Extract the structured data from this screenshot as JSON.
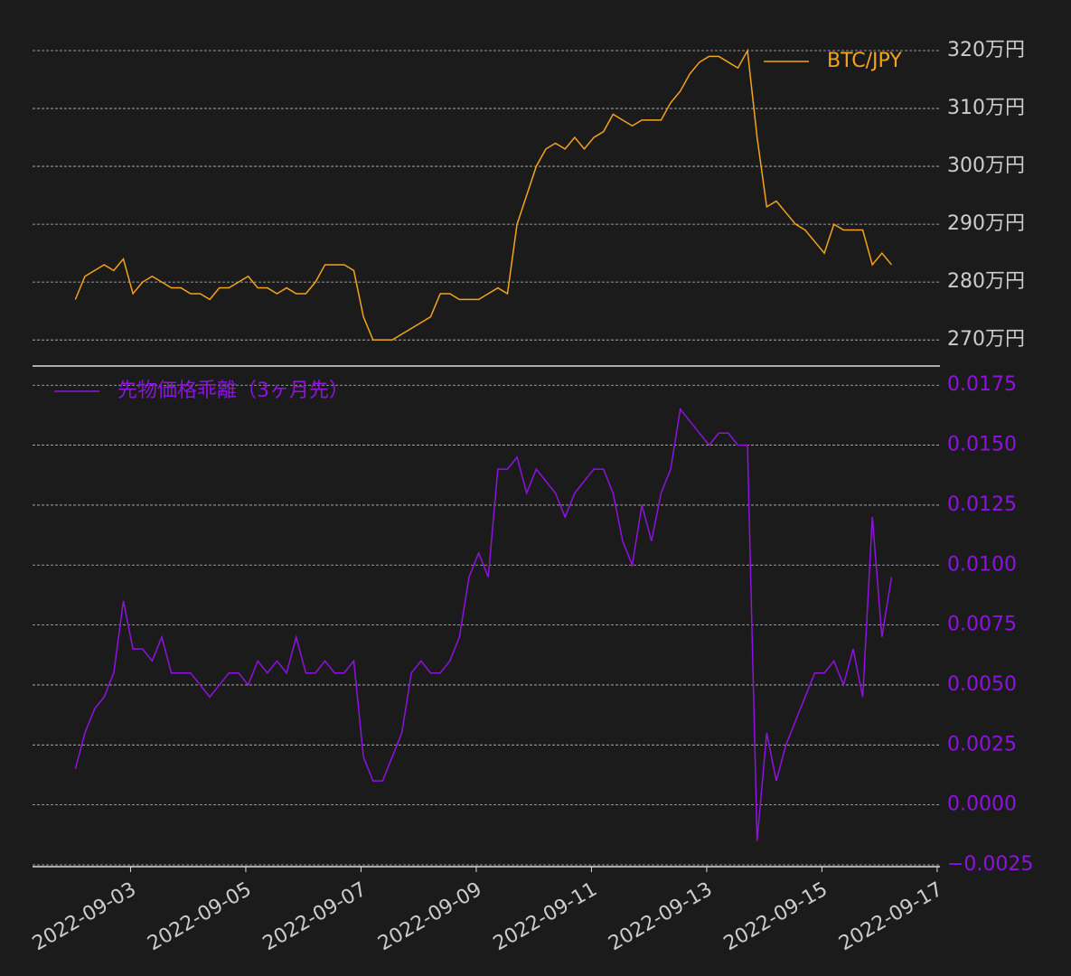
{
  "chart_data": [
    {
      "type": "line",
      "legend": "upper right",
      "xlim": [
        "2022-09-01T07:10",
        "2022-09-17T01:10"
      ],
      "ylim": [
        2655000,
        3225000
      ],
      "yticks": [
        {
          "value": 2700000,
          "label": "270万円"
        },
        {
          "value": 2800000,
          "label": "280万円"
        },
        {
          "value": 2900000,
          "label": "290万円"
        },
        {
          "value": 3000000,
          "label": "300万円"
        },
        {
          "value": 3100000,
          "label": "310万円"
        },
        {
          "value": 3200000,
          "label": "320万円"
        }
      ],
      "grid": true,
      "x": [
        "2022-09-02T01:00",
        "2022-09-02T05:00",
        "2022-09-02T09:00",
        "2022-09-02T13:00",
        "2022-09-02T17:00",
        "2022-09-02T21:00",
        "2022-09-03T01:00",
        "2022-09-03T05:00",
        "2022-09-03T09:00",
        "2022-09-03T13:00",
        "2022-09-03T17:00",
        "2022-09-03T21:00",
        "2022-09-04T01:00",
        "2022-09-04T05:00",
        "2022-09-04T09:00",
        "2022-09-04T13:00",
        "2022-09-04T17:00",
        "2022-09-04T21:00",
        "2022-09-05T01:00",
        "2022-09-05T05:00",
        "2022-09-05T09:00",
        "2022-09-05T13:00",
        "2022-09-05T17:00",
        "2022-09-05T21:00",
        "2022-09-06T01:00",
        "2022-09-06T05:00",
        "2022-09-06T09:00",
        "2022-09-06T13:00",
        "2022-09-06T17:00",
        "2022-09-06T21:00",
        "2022-09-07T01:00",
        "2022-09-07T05:00",
        "2022-09-07T09:00",
        "2022-09-07T13:00",
        "2022-09-07T17:00",
        "2022-09-07T21:00",
        "2022-09-08T01:00",
        "2022-09-08T05:00",
        "2022-09-08T09:00",
        "2022-09-08T13:00",
        "2022-09-08T17:00",
        "2022-09-08T21:00",
        "2022-09-09T01:00",
        "2022-09-09T05:00",
        "2022-09-09T09:00",
        "2022-09-09T13:00",
        "2022-09-09T17:00",
        "2022-09-09T21:00",
        "2022-09-10T01:00",
        "2022-09-10T05:00",
        "2022-09-10T09:00",
        "2022-09-10T13:00",
        "2022-09-10T17:00",
        "2022-09-10T21:00",
        "2022-09-11T01:00",
        "2022-09-11T05:00",
        "2022-09-11T09:00",
        "2022-09-11T13:00",
        "2022-09-11T17:00",
        "2022-09-11T21:00",
        "2022-09-12T01:00",
        "2022-09-12T05:00",
        "2022-09-12T09:00",
        "2022-09-12T13:00",
        "2022-09-12T17:00",
        "2022-09-12T21:00",
        "2022-09-13T01:00",
        "2022-09-13T05:00",
        "2022-09-13T09:00",
        "2022-09-13T13:00",
        "2022-09-13T17:00",
        "2022-09-13T21:00",
        "2022-09-14T01:00",
        "2022-09-14T05:00",
        "2022-09-14T09:00",
        "2022-09-14T13:00",
        "2022-09-14T17:00",
        "2022-09-14T21:00",
        "2022-09-15T01:00",
        "2022-09-15T05:00",
        "2022-09-15T09:00",
        "2022-09-15T13:00",
        "2022-09-15T17:00",
        "2022-09-15T21:00",
        "2022-09-16T01:00",
        "2022-09-16T05:00"
      ],
      "series": [
        {
          "name": "BTC/JPY",
          "color": "#f5a31a",
          "values": [
            2770000,
            2810000,
            2820000,
            2830000,
            2820000,
            2840000,
            2780000,
            2800000,
            2810000,
            2800000,
            2790000,
            2790000,
            2780000,
            2780000,
            2770000,
            2790000,
            2790000,
            2800000,
            2810000,
            2790000,
            2790000,
            2780000,
            2790000,
            2780000,
            2780000,
            2800000,
            2830000,
            2830000,
            2830000,
            2820000,
            2740000,
            2700000,
            2700000,
            2700000,
            2710000,
            2720000,
            2730000,
            2740000,
            2780000,
            2780000,
            2770000,
            2770000,
            2770000,
            2780000,
            2790000,
            2780000,
            2900000,
            2950000,
            3000000,
            3030000,
            3040000,
            3030000,
            3050000,
            3030000,
            3050000,
            3060000,
            3090000,
            3080000,
            3070000,
            3080000,
            3080000,
            3080000,
            3110000,
            3130000,
            3160000,
            3180000,
            3190000,
            3190000,
            3180000,
            3170000,
            3200000,
            3050000,
            2930000,
            2940000,
            2920000,
            2900000,
            2890000,
            2870000,
            2850000,
            2900000,
            2890000,
            2890000,
            2890000,
            2830000,
            2850000,
            2830000
          ]
        }
      ]
    },
    {
      "type": "line",
      "legend": "upper left",
      "xlim": [
        "2022-09-01T07:10",
        "2022-09-17T01:10"
      ],
      "ylim": [
        -0.0025,
        0.0183
      ],
      "yticks": [
        {
          "value": -0.0025,
          "label": "−0.0025"
        },
        {
          "value": 0,
          "label": "0.0000"
        },
        {
          "value": 0.0025,
          "label": "0.0025"
        },
        {
          "value": 0.005,
          "label": "0.0050"
        },
        {
          "value": 0.0075,
          "label": "0.0075"
        },
        {
          "value": 0.01,
          "label": "0.0100"
        },
        {
          "value": 0.0125,
          "label": "0.0125"
        },
        {
          "value": 0.015,
          "label": "0.0150"
        },
        {
          "value": 0.0175,
          "label": "0.0175"
        }
      ],
      "xticks": [
        "2022-09-03",
        "2022-09-05",
        "2022-09-07",
        "2022-09-09",
        "2022-09-11",
        "2022-09-13",
        "2022-09-15",
        "2022-09-17"
      ],
      "grid": true,
      "x": [
        "2022-09-02T01:00",
        "2022-09-02T05:00",
        "2022-09-02T09:00",
        "2022-09-02T13:00",
        "2022-09-02T17:00",
        "2022-09-02T21:00",
        "2022-09-03T01:00",
        "2022-09-03T05:00",
        "2022-09-03T09:00",
        "2022-09-03T13:00",
        "2022-09-03T17:00",
        "2022-09-03T21:00",
        "2022-09-04T01:00",
        "2022-09-04T05:00",
        "2022-09-04T09:00",
        "2022-09-04T13:00",
        "2022-09-04T17:00",
        "2022-09-04T21:00",
        "2022-09-05T01:00",
        "2022-09-05T05:00",
        "2022-09-05T09:00",
        "2022-09-05T13:00",
        "2022-09-05T17:00",
        "2022-09-05T21:00",
        "2022-09-06T01:00",
        "2022-09-06T05:00",
        "2022-09-06T09:00",
        "2022-09-06T13:00",
        "2022-09-06T17:00",
        "2022-09-06T21:00",
        "2022-09-07T01:00",
        "2022-09-07T05:00",
        "2022-09-07T09:00",
        "2022-09-07T13:00",
        "2022-09-07T17:00",
        "2022-09-07T21:00",
        "2022-09-08T01:00",
        "2022-09-08T05:00",
        "2022-09-08T09:00",
        "2022-09-08T13:00",
        "2022-09-08T17:00",
        "2022-09-08T21:00",
        "2022-09-09T01:00",
        "2022-09-09T05:00",
        "2022-09-09T09:00",
        "2022-09-09T13:00",
        "2022-09-09T17:00",
        "2022-09-09T21:00",
        "2022-09-10T01:00",
        "2022-09-10T05:00",
        "2022-09-10T09:00",
        "2022-09-10T13:00",
        "2022-09-10T17:00",
        "2022-09-10T21:00",
        "2022-09-11T01:00",
        "2022-09-11T05:00",
        "2022-09-11T09:00",
        "2022-09-11T13:00",
        "2022-09-11T17:00",
        "2022-09-11T21:00",
        "2022-09-12T01:00",
        "2022-09-12T05:00",
        "2022-09-12T09:00",
        "2022-09-12T13:00",
        "2022-09-12T17:00",
        "2022-09-12T21:00",
        "2022-09-13T01:00",
        "2022-09-13T05:00",
        "2022-09-13T09:00",
        "2022-09-13T13:00",
        "2022-09-13T17:00",
        "2022-09-13T21:00",
        "2022-09-14T01:00",
        "2022-09-14T05:00",
        "2022-09-14T09:00",
        "2022-09-14T13:00",
        "2022-09-14T17:00",
        "2022-09-14T21:00",
        "2022-09-15T01:00",
        "2022-09-15T05:00",
        "2022-09-15T09:00",
        "2022-09-15T13:00",
        "2022-09-15T17:00",
        "2022-09-15T21:00",
        "2022-09-16T01:00",
        "2022-09-16T05:00"
      ],
      "series": [
        {
          "name": "先物価格乖離（3ヶ月先）",
          "color": "#8f12e0",
          "values": [
            0.0015,
            0.003,
            0.004,
            0.0045,
            0.0055,
            0.0085,
            0.0065,
            0.0065,
            0.006,
            0.007,
            0.0055,
            0.0055,
            0.0055,
            0.005,
            0.0045,
            0.005,
            0.0055,
            0.0055,
            0.005,
            0.006,
            0.0055,
            0.006,
            0.0055,
            0.007,
            0.0055,
            0.0055,
            0.006,
            0.0055,
            0.0055,
            0.006,
            0.002,
            0.001,
            0.001,
            0.002,
            0.003,
            0.0055,
            0.006,
            0.0055,
            0.0055,
            0.006,
            0.007,
            0.0095,
            0.0105,
            0.0095,
            0.014,
            0.014,
            0.0145,
            0.013,
            0.014,
            0.0135,
            0.013,
            0.012,
            0.013,
            0.0135,
            0.014,
            0.014,
            0.013,
            0.011,
            0.01,
            0.0125,
            0.011,
            0.013,
            0.014,
            0.0165,
            0.016,
            0.0155,
            0.015,
            0.0155,
            0.0155,
            0.015,
            0.015,
            -0.0015,
            0.003,
            0.001,
            0.0025,
            0.0035,
            0.0045,
            0.0055,
            0.0055,
            0.006,
            0.005,
            0.0065,
            0.0045,
            0.012,
            0.007,
            0.0095
          ]
        }
      ]
    }
  ]
}
